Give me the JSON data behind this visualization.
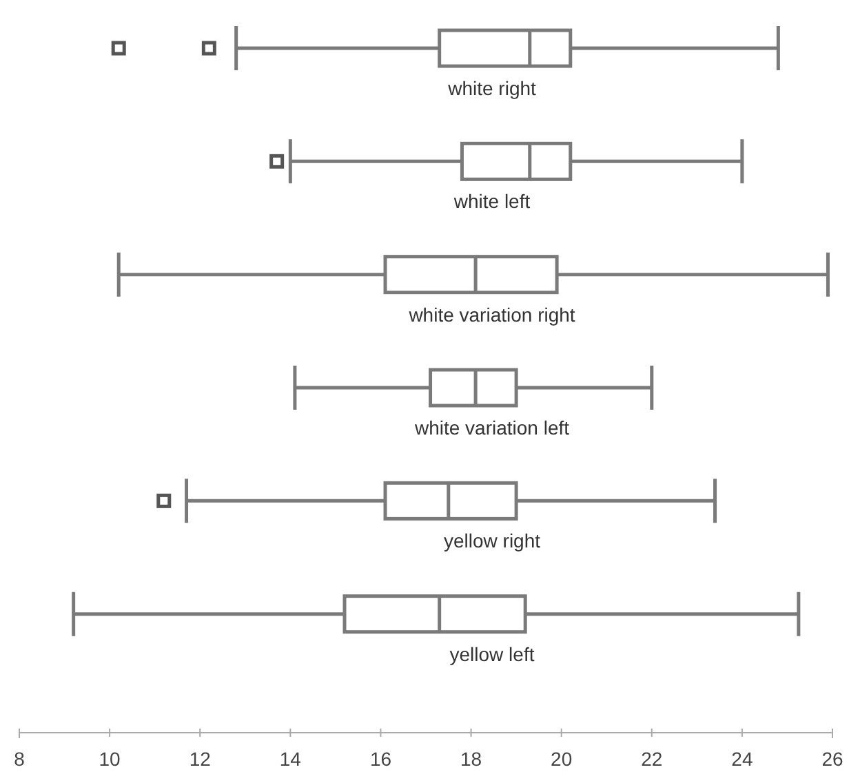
{
  "chart_data": {
    "type": "box",
    "orientation": "horizontal",
    "color": "#7a7a7a",
    "categories": [
      "white right",
      "white left",
      "white variation right",
      "white variation left",
      "yellow right",
      "yellow left"
    ],
    "boxes": [
      {
        "low": 12.8,
        "q1": 17.3,
        "median": 19.3,
        "q3": 20.2,
        "high": 24.8,
        "outliers": [
          10.2,
          12.2
        ]
      },
      {
        "low": 14.0,
        "q1": 17.8,
        "median": 19.3,
        "q3": 20.2,
        "high": 24.0,
        "outliers": [
          13.7
        ]
      },
      {
        "low": 10.2,
        "q1": 16.1,
        "median": 18.1,
        "q3": 19.9,
        "high": 25.9
      },
      {
        "low": 14.1,
        "q1": 17.1,
        "median": 18.1,
        "q3": 19.0,
        "high": 22.0
      },
      {
        "low": 11.7,
        "q1": 16.1,
        "median": 17.5,
        "q3": 19.0,
        "high": 23.4,
        "outliers": [
          11.2
        ]
      },
      {
        "low": 9.2,
        "q1": 15.2,
        "median": 17.3,
        "q3": 19.2,
        "high": 25.25
      }
    ],
    "xlim": [
      8,
      26
    ],
    "xticks": [
      8,
      10,
      12,
      14,
      16,
      18,
      20,
      22,
      24,
      26
    ],
    "tick_labels": "x"
  }
}
